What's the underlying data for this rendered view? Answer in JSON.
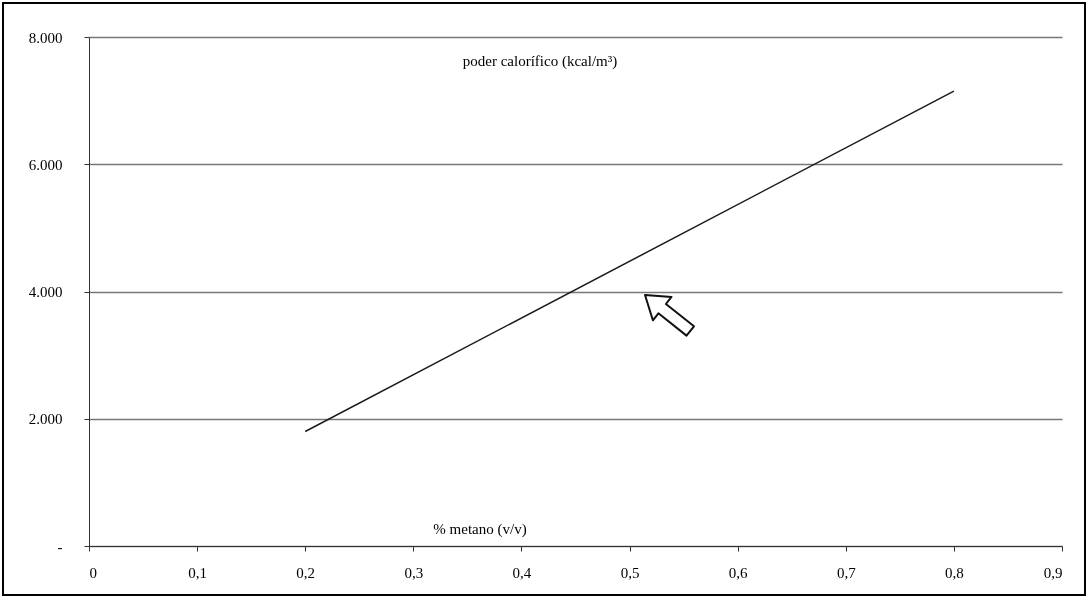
{
  "chart_data": {
    "type": "line",
    "xlabel": "% metano (v/v)",
    "ylabel": "poder calorífico (kcal/m³)",
    "x": [
      0.2,
      0.8
    ],
    "series": [
      {
        "color": "#1a1a1a",
        "values": [
          1800,
          7150
        ]
      }
    ],
    "xlim": [
      0,
      0.9
    ],
    "xticks": [
      0,
      {
        "value": 0.1,
        "label": "0,1"
      },
      {
        "value": 0.2,
        "label": "0,2"
      },
      {
        "value": 0.3,
        "label": "0,3"
      },
      {
        "value": 0.4,
        "label": "0,4"
      },
      {
        "value": 0.5,
        "label": "0,5"
      },
      {
        "value": 0.6,
        "label": "0,6"
      },
      {
        "value": 0.7,
        "label": "0,7"
      },
      {
        "value": 0.8,
        "label": "0,8"
      },
      {
        "value": 0.9,
        "label": "0,9"
      }
    ],
    "ylim": [
      0,
      8000
    ],
    "yticks": [
      {
        "value": 0,
        "label": "-"
      },
      {
        "value": 2000,
        "label": "2.000"
      },
      {
        "value": 4000,
        "label": "4.000"
      },
      {
        "value": 6000,
        "label": "6.000"
      },
      {
        "value": 8000,
        "label": "8.000"
      }
    ],
    "grid": "y"
  }
}
